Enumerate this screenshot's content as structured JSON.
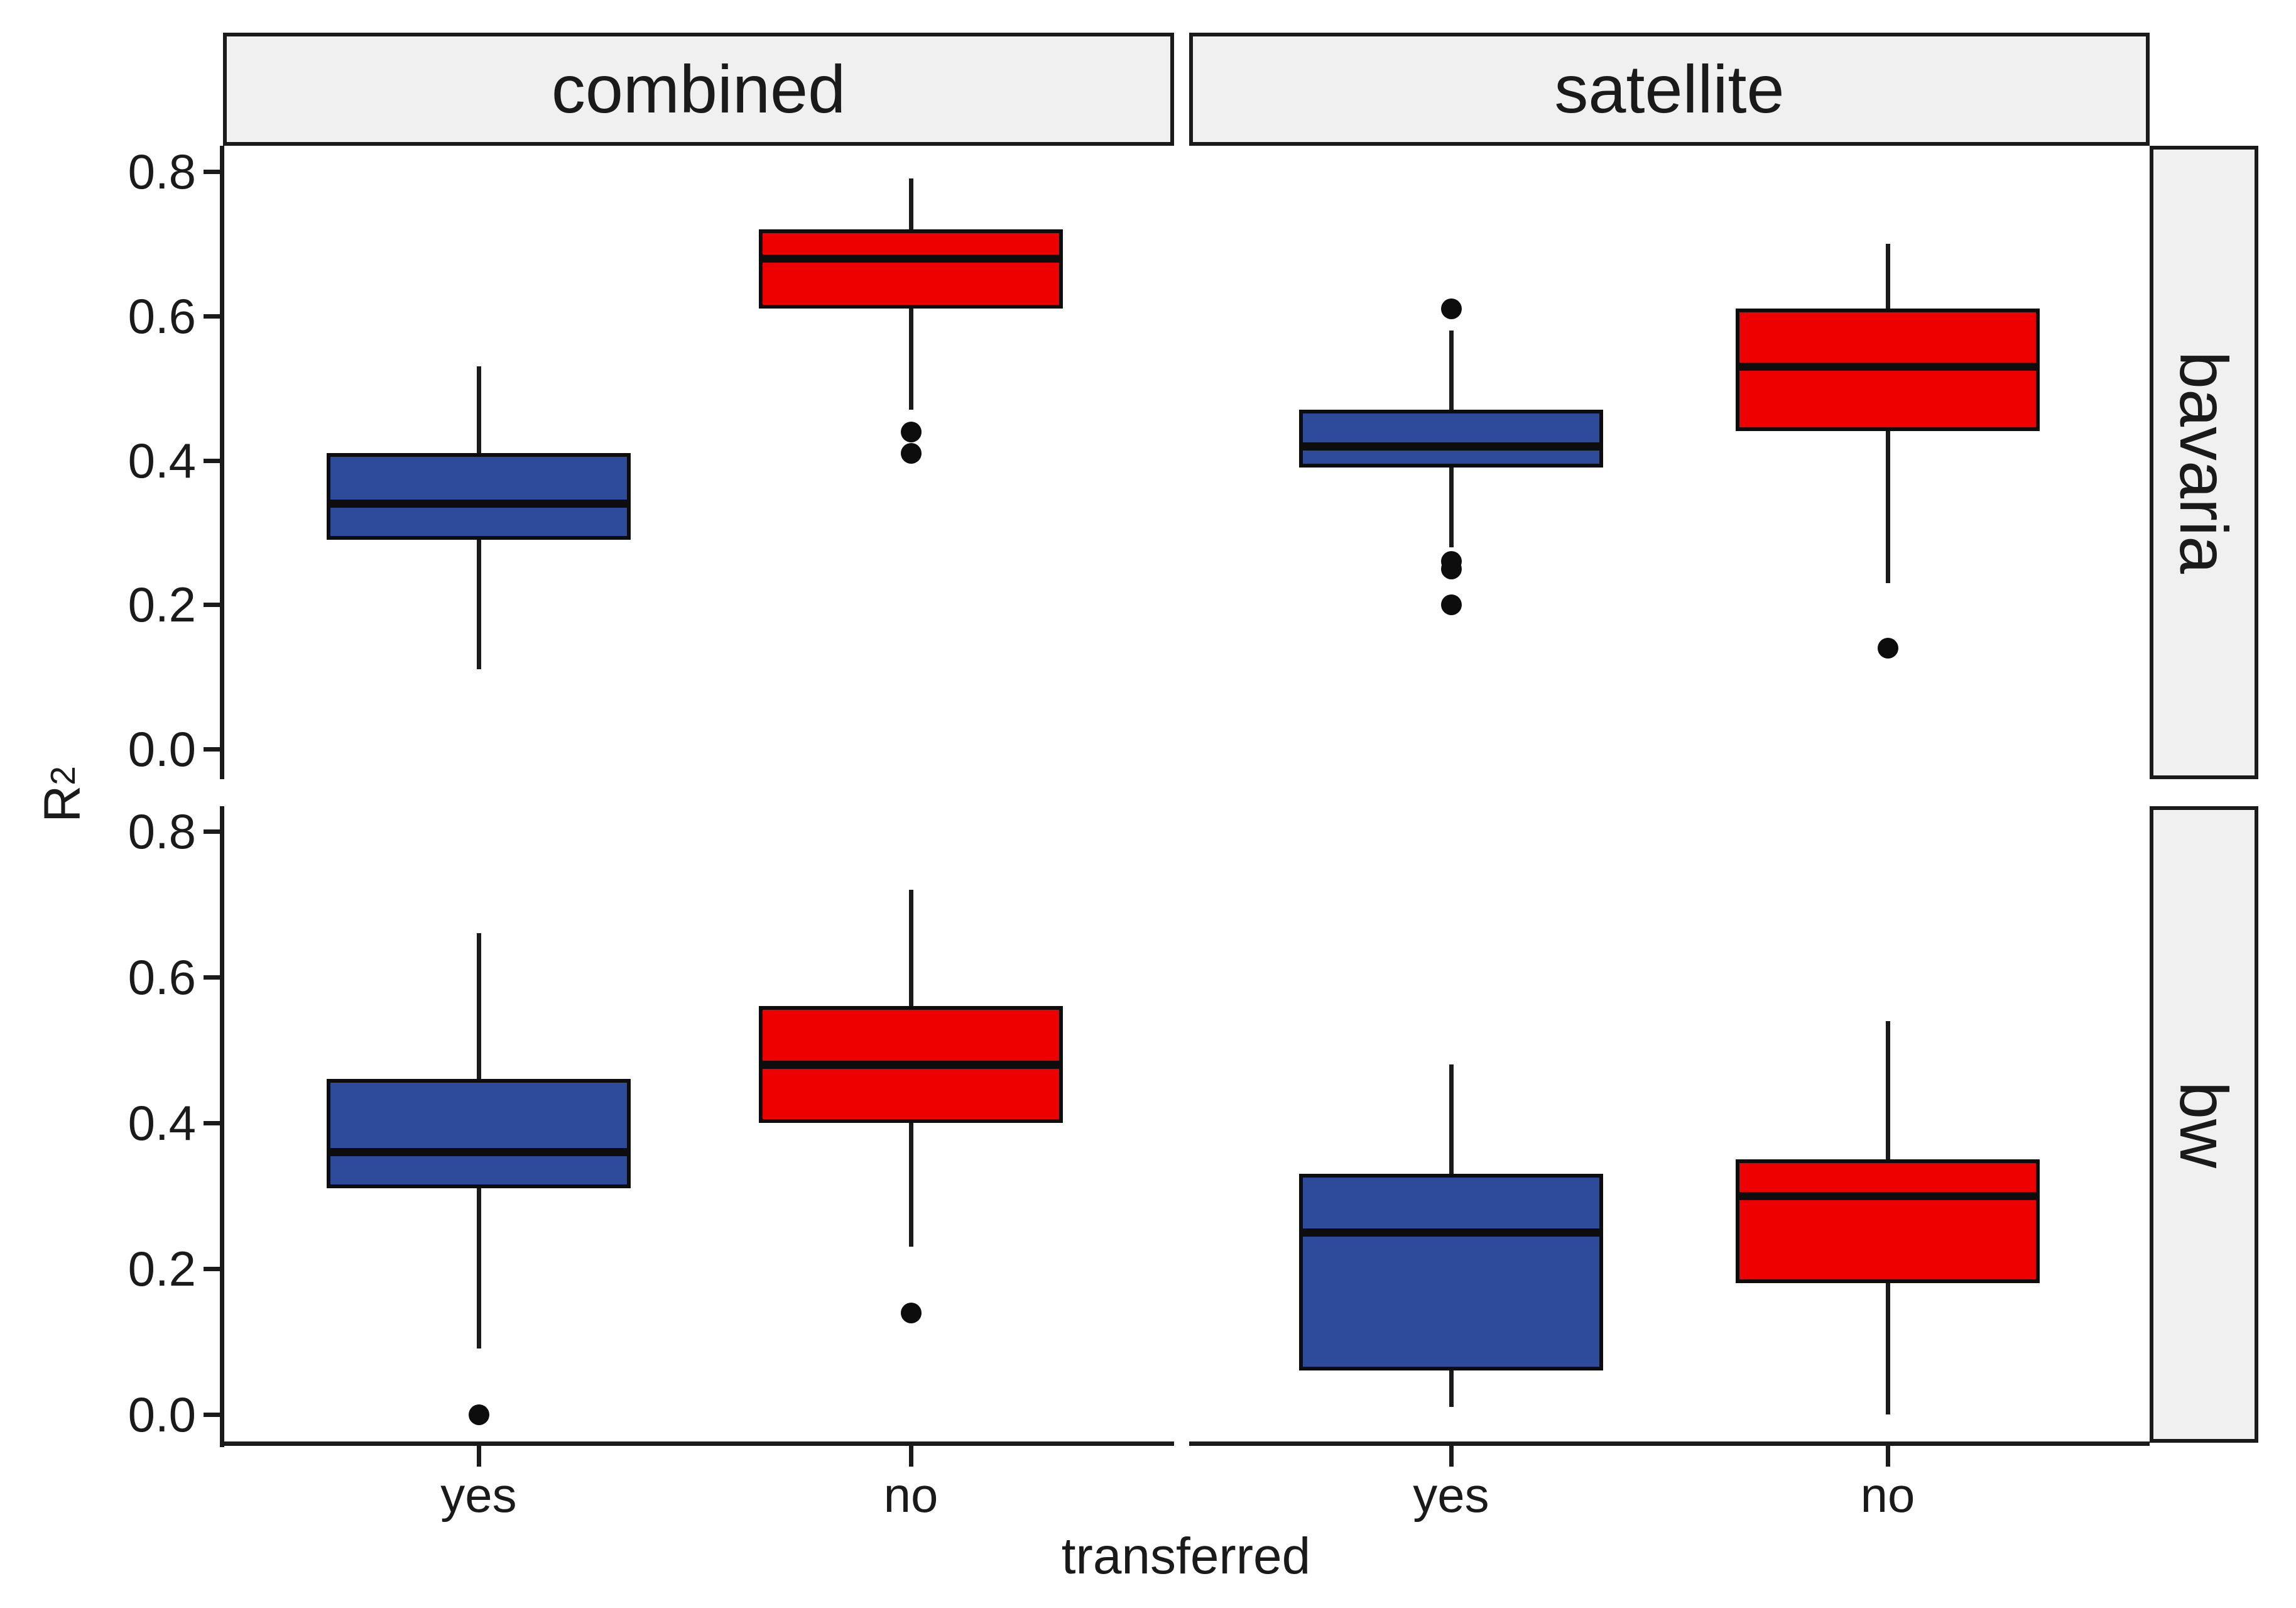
{
  "figure": {
    "background": "#FFFFFF",
    "kind": "faceted boxplot"
  },
  "colors": {
    "blue_fill": "#2E4A9B",
    "red_fill": "#EF0000",
    "outline": "#0d0d0d",
    "axis": "#1a1a1a",
    "strip_background": "#F0F0F0",
    "text": "#1a1a1a"
  },
  "chart_data": {
    "type": "boxplot",
    "title": "",
    "xlabel": "transferred",
    "ylabel": "R²",
    "ylabel_base": "R",
    "ylabel_exp": "2",
    "facet_columns": [
      "combined",
      "satellite"
    ],
    "facet_rows": [
      "bavaria",
      "bw"
    ],
    "x_categories": [
      "yes",
      "no"
    ],
    "y_tick_labels": [
      "0.8",
      "0.6",
      "0.4",
      "0.2",
      "0.0"
    ],
    "y_tick_values": [
      0.8,
      0.6,
      0.4,
      0.2,
      0.0
    ],
    "ylim": [
      -0.04,
      0.84
    ],
    "grid": "off",
    "legend": "none",
    "fill_by_category": {
      "yes": "#2E4A9B",
      "no": "#EF0000"
    },
    "boxes": [
      {
        "facet_col": "combined",
        "facet_row": "bavaria",
        "x": "yes",
        "whisker_low": 0.11,
        "q1": 0.29,
        "median": 0.34,
        "q3": 0.41,
        "whisker_high": 0.53,
        "outliers": []
      },
      {
        "facet_col": "combined",
        "facet_row": "bavaria",
        "x": "no",
        "whisker_low": 0.47,
        "q1": 0.61,
        "median": 0.68,
        "q3": 0.72,
        "whisker_high": 0.79,
        "outliers": [
          0.44,
          0.41
        ]
      },
      {
        "facet_col": "satellite",
        "facet_row": "bavaria",
        "x": "yes",
        "whisker_low": 0.28,
        "q1": 0.39,
        "median": 0.42,
        "q3": 0.47,
        "whisker_high": 0.58,
        "outliers": [
          0.61,
          0.26,
          0.25,
          0.2
        ]
      },
      {
        "facet_col": "satellite",
        "facet_row": "bavaria",
        "x": "no",
        "whisker_low": 0.23,
        "q1": 0.44,
        "median": 0.53,
        "q3": 0.61,
        "whisker_high": 0.7,
        "outliers": [
          0.14
        ]
      },
      {
        "facet_col": "combined",
        "facet_row": "bw",
        "x": "yes",
        "whisker_low": 0.09,
        "q1": 0.31,
        "median": 0.36,
        "q3": 0.46,
        "whisker_high": 0.66,
        "outliers": [
          0.0
        ]
      },
      {
        "facet_col": "combined",
        "facet_row": "bw",
        "x": "no",
        "whisker_low": 0.23,
        "q1": 0.4,
        "median": 0.48,
        "q3": 0.56,
        "whisker_high": 0.72,
        "outliers": [
          0.14
        ]
      },
      {
        "facet_col": "satellite",
        "facet_row": "bw",
        "x": "yes",
        "whisker_low": 0.01,
        "q1": 0.06,
        "median": 0.25,
        "q3": 0.33,
        "whisker_high": 0.48,
        "outliers": []
      },
      {
        "facet_col": "satellite",
        "facet_row": "bw",
        "x": "no",
        "whisker_low": 0.0,
        "q1": 0.18,
        "median": 0.3,
        "q3": 0.35,
        "whisker_high": 0.54,
        "outliers": []
      }
    ]
  }
}
